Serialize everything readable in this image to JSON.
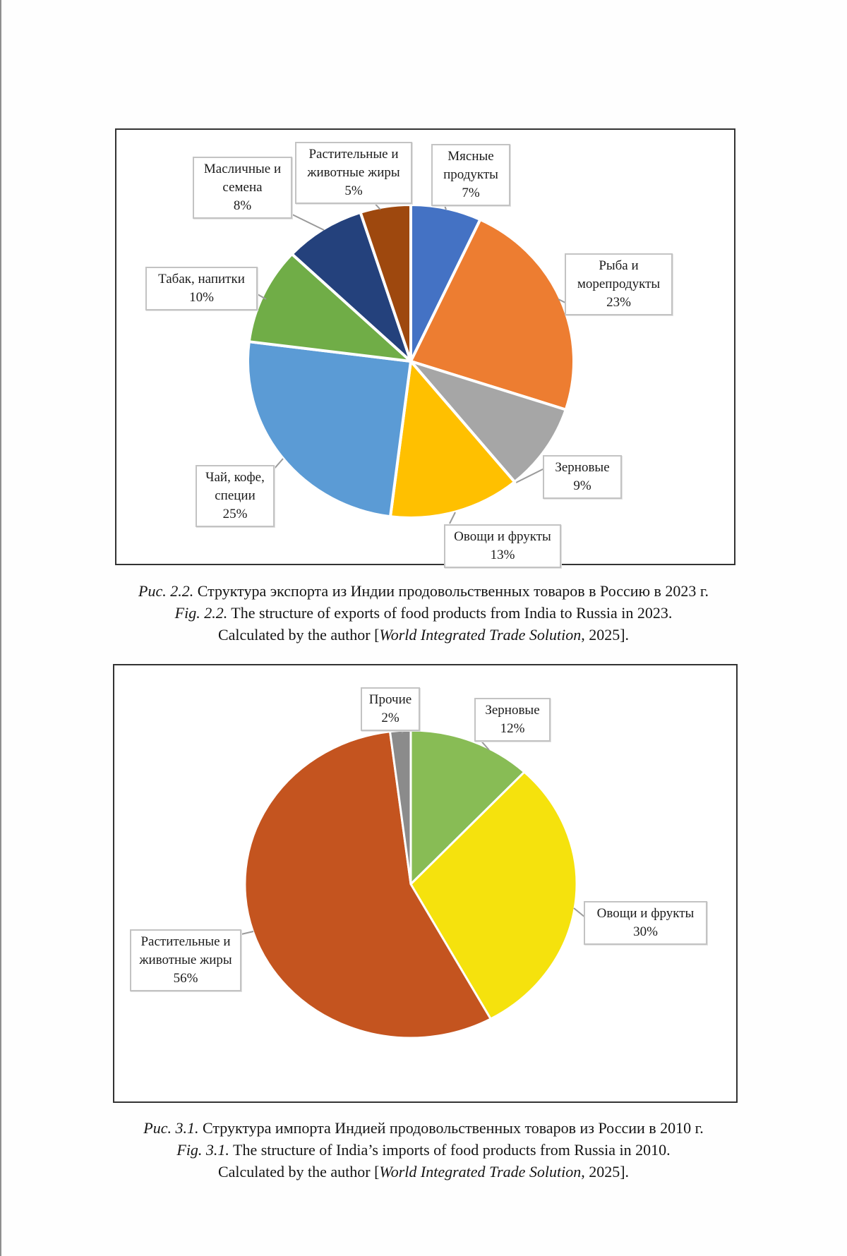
{
  "page": {
    "background": "#fefefe",
    "edge_line_color": "#8f8f8f"
  },
  "figures": [
    {
      "name": "fig-2-2",
      "caption_lines": [
        [
          {
            "text": "Рис. 2.2.",
            "italic": true
          },
          {
            "text": " Структура экспорта из Индии продовольственных товаров в Россию в 2023 г.",
            "italic": false
          }
        ],
        [
          {
            "text": "Fig. 2.2.",
            "italic": true
          },
          {
            "text": " The structure of exports of food products from India to Russia in 2023.",
            "italic": false
          }
        ],
        [
          {
            "text": "Calculated by the author [",
            "italic": false
          },
          {
            "text": "World Integrated Trade Solution",
            "italic": true
          },
          {
            "text": ", 2025].",
            "italic": false
          }
        ]
      ],
      "chart_data": {
        "type": "pie",
        "title": "Структура экспорта из Индии продовольственных товаров в Россию в 2023 г.",
        "unit": "percent",
        "start_angle_deg": 0,
        "direction": "clockwise",
        "slices": [
          {
            "key": "meat-products",
            "label": "Мясные продукты",
            "value": 7,
            "color": "#4472C4",
            "callout_lines": [
              "Мясные",
              "продукты",
              "7%"
            ]
          },
          {
            "key": "fish-and-seafood",
            "label": "Рыба и морепродукты",
            "value": 23,
            "color": "#ED7D31",
            "callout_lines": [
              "Рыба и",
              "морепродукты",
              "23%"
            ]
          },
          {
            "key": "cereals",
            "label": "Зерновые",
            "value": 9,
            "color": "#A6A6A6",
            "callout_lines": [
              "Зерновые",
              "9%"
            ]
          },
          {
            "key": "vegetables-and-fruits",
            "label": "Овощи и фрукты",
            "value": 13,
            "color": "#FFC000",
            "callout_lines": [
              "Овощи и фрукты",
              "13%"
            ]
          },
          {
            "key": "tea-coffee-spices",
            "label": "Чай, кофе, специи",
            "value": 25,
            "color": "#5B9BD5",
            "callout_lines": [
              "Чай, кофе,",
              "специи",
              "25%"
            ]
          },
          {
            "key": "tobacco-beverages",
            "label": "Табак, напитки",
            "value": 10,
            "color": "#70AD47",
            "callout_lines": [
              "Табак, напитки",
              "10%"
            ]
          },
          {
            "key": "oilseeds-and-seeds",
            "label": "Масличные и семена",
            "value": 8,
            "color": "#24417C",
            "callout_lines": [
              "Масличные и",
              "семена",
              "8%"
            ]
          },
          {
            "key": "vegetable-and-animal-fats",
            "label": "Растительные и животные жиры",
            "value": 5,
            "color": "#9E480E",
            "callout_lines": [
              "Растительные и",
              "животные жиры",
              "5%"
            ]
          }
        ]
      }
    },
    {
      "name": "fig-3-1",
      "caption_lines": [
        [
          {
            "text": "Рис. 3.1.",
            "italic": true
          },
          {
            "text": " Структура импорта Индией продовольственных товаров из России в 2010 г.",
            "italic": false
          }
        ],
        [
          {
            "text": "Fig. 3.1.",
            "italic": true
          },
          {
            "text": " The structure of India’s imports of food products from Russia in 2010.",
            "italic": false
          }
        ],
        [
          {
            "text": "Calculated by the author [",
            "italic": false
          },
          {
            "text": "World Integrated Trade Solution",
            "italic": true
          },
          {
            "text": ", 2025].",
            "italic": false
          }
        ]
      ],
      "chart_data": {
        "type": "pie",
        "title": "Структура импорта Индией продовольственных товаров из России в 2010 г.",
        "unit": "percent",
        "start_angle_deg": 0,
        "direction": "clockwise",
        "slices": [
          {
            "key": "cereals",
            "label": "Зерновые",
            "value": 12,
            "color": "#88BC55",
            "callout_lines": [
              "Зерновые",
              "12%"
            ]
          },
          {
            "key": "vegetables-and-fruits",
            "label": "Овощи и фрукты",
            "value": 30,
            "color": "#F5E20D",
            "callout_lines": [
              "Овощи и фрукты",
              "30%"
            ]
          },
          {
            "key": "vegetable-and-animal-fats",
            "label": "Растительные и животные жиры",
            "value": 56,
            "color": "#C4541F",
            "callout_lines": [
              "Растительные и",
              "животные жиры",
              "56%"
            ]
          },
          {
            "key": "other",
            "label": "Прочие",
            "value": 2,
            "color": "#8B8B8B",
            "callout_lines": [
              "Прочие",
              "2%"
            ]
          }
        ]
      }
    }
  ]
}
